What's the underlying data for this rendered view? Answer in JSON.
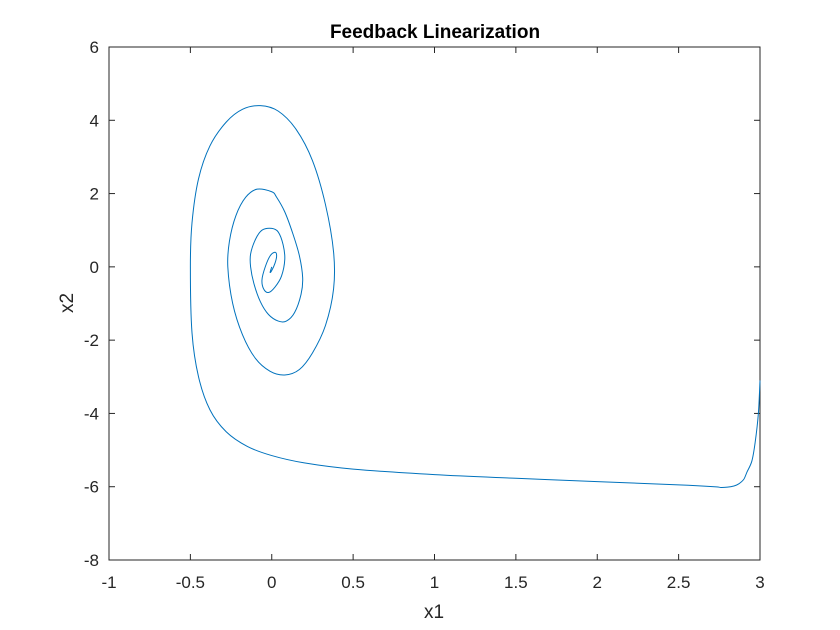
{
  "chart_data": {
    "type": "line",
    "title": "Feedback Linearization",
    "xlabel": "x1",
    "ylabel": "x2",
    "xlim": [
      -1,
      3
    ],
    "ylim": [
      -8,
      6
    ],
    "xticks": [
      "-1",
      "-0.5",
      "0",
      "0.5",
      "1",
      "1.5",
      "2",
      "2.5",
      "3"
    ],
    "yticks": [
      "6",
      "4",
      "2",
      "0",
      "-2",
      "-4",
      "-6",
      "-8"
    ],
    "grid": false,
    "series": [
      {
        "color": "#0072BD",
        "x": [
          3.0,
          2.99,
          2.97,
          2.95,
          2.92,
          2.9,
          2.87,
          2.84,
          2.8,
          2.76,
          2.72,
          2.5,
          2.0,
          1.5,
          1.0,
          0.5,
          0.2,
          0.0,
          -0.15,
          -0.28,
          -0.38,
          -0.45,
          -0.49,
          -0.5,
          -0.49,
          -0.45,
          -0.38,
          -0.28,
          -0.18,
          -0.07,
          0.04,
          0.15,
          0.25,
          0.33,
          0.38,
          0.38,
          0.33,
          0.25,
          0.17,
          0.08,
          -0.01,
          -0.1,
          -0.18,
          -0.24,
          -0.27,
          -0.26,
          -0.22,
          -0.16,
          -0.09,
          0.0,
          0.03,
          0.08,
          0.13,
          0.17,
          0.19,
          0.18,
          0.14,
          0.09,
          0.04,
          -0.02,
          -0.07,
          -0.11,
          -0.13,
          -0.13,
          -0.1,
          -0.06,
          0.0,
          0.04,
          0.07,
          0.08,
          0.06,
          0.02,
          -0.02,
          -0.05,
          -0.06,
          -0.04,
          -0.01,
          0.02,
          0.03,
          0.02,
          0.0,
          -0.01,
          0.0
        ],
        "y": [
          -3.1,
          -4.0,
          -4.8,
          -5.3,
          -5.6,
          -5.8,
          -5.92,
          -5.98,
          -6.01,
          -6.02,
          -6.0,
          -5.95,
          -5.86,
          -5.77,
          -5.67,
          -5.52,
          -5.35,
          -5.15,
          -4.9,
          -4.5,
          -3.9,
          -3.0,
          -1.8,
          0.0,
          1.2,
          2.4,
          3.3,
          3.95,
          4.3,
          4.4,
          4.25,
          3.75,
          2.9,
          1.7,
          0.4,
          -0.6,
          -1.6,
          -2.35,
          -2.8,
          -2.95,
          -2.85,
          -2.5,
          -1.85,
          -1.0,
          0.0,
          0.7,
          1.4,
          1.9,
          2.12,
          2.05,
          1.9,
          1.5,
          0.9,
          0.3,
          -0.3,
          -0.75,
          -1.25,
          -1.48,
          -1.48,
          -1.3,
          -0.95,
          -0.45,
          0.0,
          0.35,
          0.75,
          1.0,
          1.05,
          0.95,
          0.6,
          0.2,
          -0.25,
          -0.55,
          -0.7,
          -0.6,
          -0.35,
          0.0,
          0.3,
          0.4,
          0.3,
          0.1,
          -0.1,
          -0.15,
          0.0
        ]
      }
    ]
  }
}
